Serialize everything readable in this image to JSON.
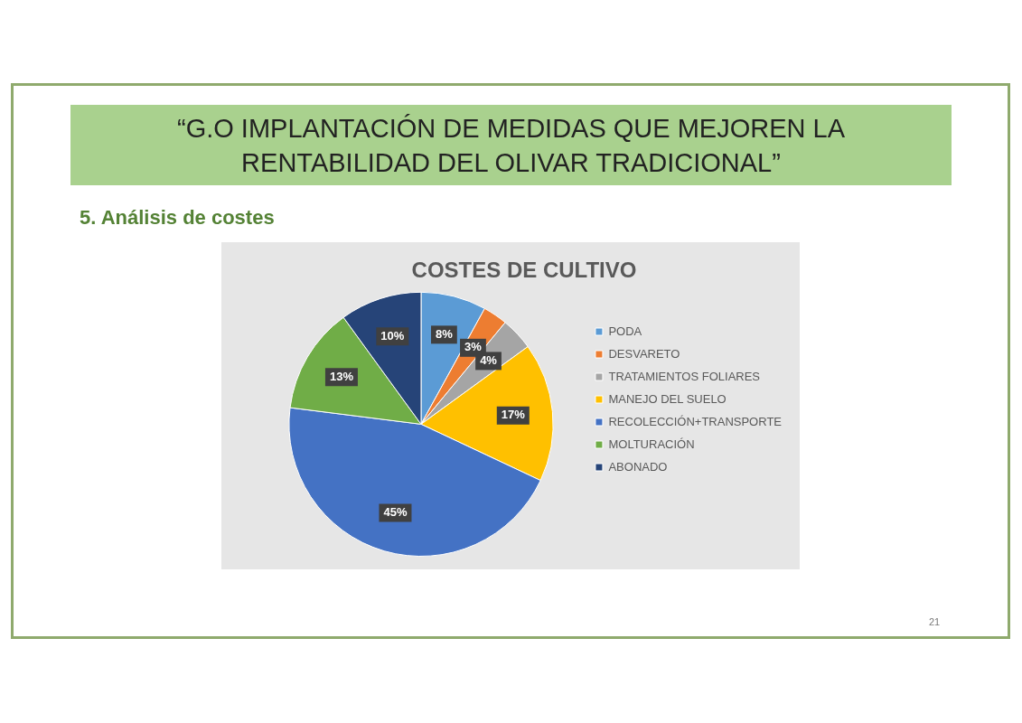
{
  "chart_data": {
    "type": "pie",
    "title": "COSTES DE CULTIVO",
    "annotations": [
      "“G.O IMPLANTACIÓN DE MEDIDAS QUE MEJOREN LA RENTABILIDAD DEL OLIVAR TRADICIONAL”",
      "5. Análisis de costes",
      "21"
    ],
    "categories": [
      "PODA",
      "DESVARETO",
      "TRATAMIENTOS FOLIARES",
      "MANEJO DEL SUELO",
      "RECOLECCIÓN+TRANSPORTE",
      "MOLTURACIÓN",
      "ABONADO"
    ],
    "values": [
      8,
      3,
      4,
      17,
      45,
      13,
      10
    ],
    "colors": [
      "#5b9bd5",
      "#ed7d31",
      "#a5a5a5",
      "#ffc000",
      "#4472c4",
      "#70ad47",
      "#264478"
    ],
    "value_labels": [
      "8%",
      "3%",
      "4%",
      "17%",
      "45%",
      "13%",
      "10%"
    ],
    "legend": "right"
  }
}
